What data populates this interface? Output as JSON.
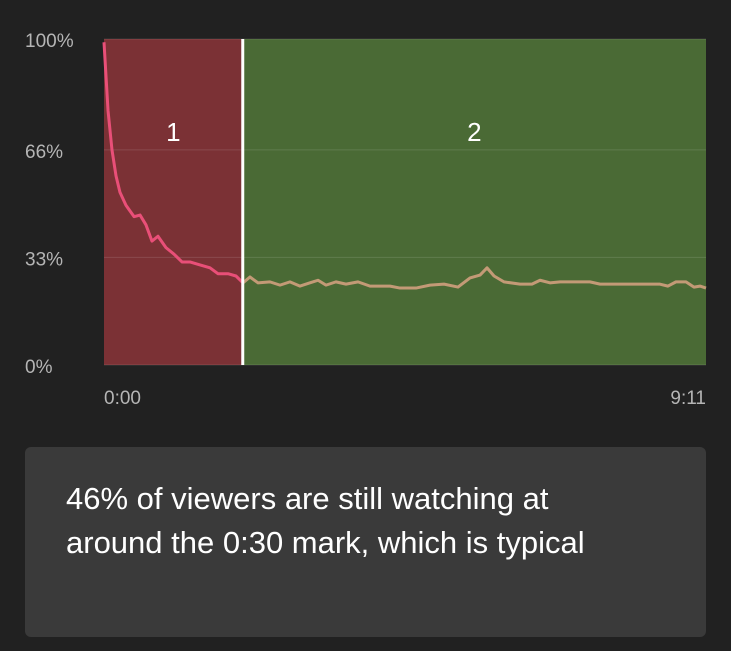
{
  "chart_data": {
    "type": "line",
    "x": [
      0,
      3.7,
      7.3,
      11,
      14.6,
      20.1,
      27.5,
      33,
      38.4,
      43.9,
      49.4,
      56.7,
      64.1,
      71.4,
      78.7,
      87.9,
      97,
      104.3,
      113.5,
      120.8,
      127.2,
      133.6,
      140.9,
      151.9,
      161.1,
      170.2,
      179.4,
      188.5,
      195.9,
      203.2,
      212.3,
      221.5,
      232.5,
      243.5,
      261.8,
      270.9,
      285.6,
      298.4,
      311.2,
      324,
      335,
      344.2,
      350.6,
      357,
      366.1,
      380.8,
      391.7,
      399.1,
      408.2,
      417.4,
      444.8,
      454,
      472.3,
      508.9,
      516.2,
      523.5,
      532.7,
      540,
      545.5,
      551
    ],
    "series": [
      {
        "values": [
          99,
          78,
          66,
          58,
          53,
          49,
          45.5,
          46,
          43,
          38,
          39.5,
          36,
          34,
          31.6,
          31.6,
          30.7,
          29.8,
          28,
          28,
          27.3,
          25.2,
          27,
          25.2,
          25.5,
          24.5,
          25.5,
          24.2,
          25.2,
          26,
          24.5,
          25.5,
          24.8,
          25.5,
          24.2,
          24.2,
          23.6,
          23.6,
          24.5,
          24.8,
          23.9,
          26.7,
          27.6,
          29.8,
          27.3,
          25.5,
          24.8,
          24.8,
          26,
          25.2,
          25.5,
          25.5,
          24.8,
          24.8,
          24.8,
          24.2,
          25.5,
          25.5,
          23.9,
          24.2,
          23.6
        ]
      }
    ],
    "segments": [
      {
        "label": "1",
        "start": 0,
        "end": 127,
        "color": "#7b3135",
        "line_color": "#e94f78"
      },
      {
        "label": "2",
        "start": 127,
        "end": 551,
        "color": "#4a6a35",
        "line_color": "#c39a76"
      }
    ],
    "xlim": [
      0,
      551
    ],
    "xticks": [
      {
        "value": 0,
        "label": "0:00"
      },
      {
        "value": 551,
        "label": "9:11"
      }
    ],
    "ylim": [
      0,
      100
    ],
    "yticks": [
      {
        "value": 100,
        "label": "100%"
      },
      {
        "value": 66,
        "label": "66%"
      },
      {
        "value": 33,
        "label": "33%"
      },
      {
        "value": 0,
        "label": "0%"
      }
    ],
    "grid": true
  },
  "insight": "46% of viewers are still watching at around the 0:30 mark, which is typical"
}
